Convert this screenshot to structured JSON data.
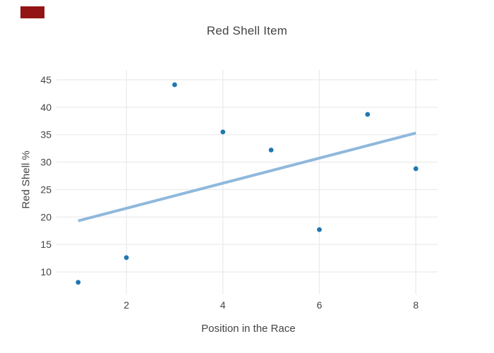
{
  "page": {
    "background": "#ffffff"
  },
  "patch": {
    "color": "#931414"
  },
  "chart_data": {
    "type": "scatter",
    "title": "Red Shell Item",
    "xlabel": "Position in the Race",
    "ylabel": "Red Shell %",
    "x": [
      1,
      2,
      3,
      4,
      5,
      6,
      7,
      8
    ],
    "y": [
      8.1,
      12.6,
      44.1,
      35.5,
      32.2,
      17.7,
      38.7,
      28.8
    ],
    "trendline": {
      "x": [
        1,
        8
      ],
      "y": [
        19.3,
        35.3
      ]
    },
    "xticks": [
      "2",
      "4",
      "6",
      "8"
    ],
    "xtick_values": [
      2,
      4,
      6,
      8
    ],
    "yticks": [
      "10",
      "15",
      "20",
      "25",
      "30",
      "35",
      "40",
      "45"
    ],
    "ytick_values": [
      10,
      15,
      20,
      25,
      30,
      35,
      40,
      45
    ],
    "xlim": [
      0.55,
      8.45
    ],
    "ylim": [
      5.9,
      46.8
    ],
    "grid": true,
    "legend": "none",
    "marker_color": "#1f77b4",
    "trend_color": "#8fb8dc",
    "grid_color": "#ebebeb",
    "text_color": "#444444"
  }
}
